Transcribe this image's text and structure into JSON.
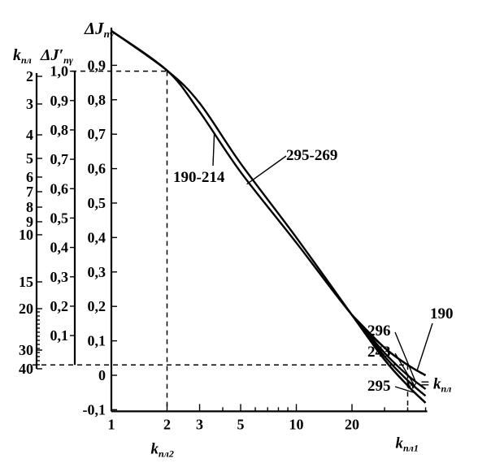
{
  "chart_data": {
    "type": "line",
    "x_scale": "log",
    "xlim": [
      1,
      50
    ],
    "ylim": [
      -0.1,
      1.0
    ],
    "x_ticks": [
      1,
      2,
      3,
      5,
      10,
      20
    ],
    "y_ticks": [
      -0.1,
      0,
      0.1,
      0.2,
      0.3,
      0.4,
      0.5,
      0.6,
      0.7,
      0.8,
      0.9
    ],
    "y_label": "ΔJ",
    "y_label_sub": "пγ",
    "x_label": "w = k",
    "x_label_sub": "пл",
    "k_pl1_label": "k",
    "k_pl1_sub": "пл1",
    "k_pl2_label": "k",
    "k_pl2_sub": "пл2",
    "series": [
      {
        "label": "190-214",
        "points": [
          [
            1,
            1.0
          ],
          [
            2,
            0.885
          ],
          [
            3,
            0.765
          ],
          [
            5,
            0.59
          ],
          [
            10,
            0.385
          ],
          [
            20,
            0.175
          ],
          [
            30,
            0.08
          ],
          [
            40,
            0.03
          ],
          [
            50,
            0.0
          ]
        ]
      },
      {
        "label": "295-269",
        "points": [
          [
            1,
            1.0
          ],
          [
            2,
            0.885
          ],
          [
            3,
            0.79
          ],
          [
            5,
            0.615
          ],
          [
            10,
            0.4
          ],
          [
            20,
            0.175
          ],
          [
            30,
            0.045
          ],
          [
            40,
            -0.03
          ],
          [
            50,
            -0.08
          ]
        ]
      }
    ],
    "tail_labels": [
      {
        "label": "190",
        "points": [
          [
            20,
            0.175
          ],
          [
            30,
            0.08
          ],
          [
            40,
            0.03
          ],
          [
            50,
            0.0
          ]
        ]
      },
      {
        "label": "296",
        "points": [
          [
            20,
            0.175
          ],
          [
            30,
            0.065
          ],
          [
            40,
            0.0
          ],
          [
            50,
            -0.04
          ]
        ]
      },
      {
        "label": "243",
        "points": [
          [
            20,
            0.175
          ],
          [
            30,
            0.055
          ],
          [
            40,
            -0.015
          ],
          [
            50,
            -0.06
          ]
        ]
      },
      {
        "label": "295",
        "points": [
          [
            20,
            0.175
          ],
          [
            30,
            0.045
          ],
          [
            40,
            -0.03
          ],
          [
            50,
            -0.08
          ]
        ]
      }
    ],
    "aux_scale_dj": {
      "label": "ΔJ′",
      "label_sub": "пγ",
      "ticks": [
        "1,0",
        "0,9",
        "0,8",
        "0,7",
        "0,6",
        "0,5",
        "0,4",
        "0,3",
        "0,2",
        "0,1"
      ],
      "values": [
        1.0,
        0.9,
        0.8,
        0.7,
        0.6,
        0.5,
        0.4,
        0.3,
        0.2,
        0.1
      ]
    },
    "aux_scale_k": {
      "label": "k",
      "label_sub": "пл",
      "ticks": [
        "2",
        "3",
        "4",
        "5",
        "6",
        "7",
        "8",
        "9",
        "10",
        "15",
        "20",
        "30",
        "40"
      ],
      "values": [
        2,
        3,
        4,
        5,
        6,
        7,
        8,
        9,
        10,
        15,
        20,
        30,
        40
      ]
    },
    "reference_lines": {
      "y_main": 0.883,
      "y_low": 0.03,
      "x_k_pl2": 2,
      "x_k_pl1": 40
    }
  }
}
